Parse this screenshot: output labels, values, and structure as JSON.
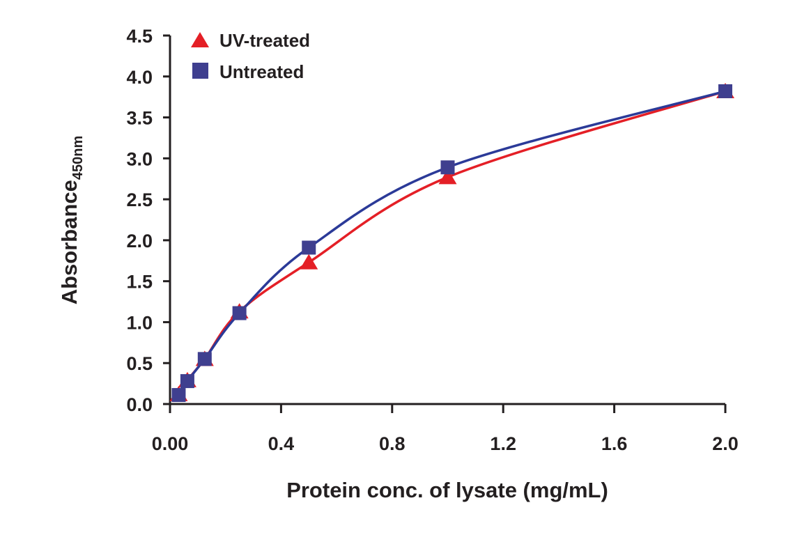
{
  "chart_data": {
    "type": "line",
    "title": "",
    "xlabel": "Protein conc. of lysate (mg/mL)",
    "ylabel": "Absorbance",
    "ylabel_subscript": "450nm",
    "xlim": [
      0,
      2.0
    ],
    "ylim": [
      0,
      4.5
    ],
    "xticks": [
      "0.00",
      "0.4",
      "0.8",
      "1.2",
      "1.6",
      "2.0"
    ],
    "xtick_values": [
      0,
      0.4,
      0.8,
      1.2,
      1.6,
      2.0
    ],
    "yticks": [
      "0.0",
      "0.5",
      "1.0",
      "1.5",
      "2.0",
      "2.5",
      "3.0",
      "3.5",
      "4.0",
      "4.5"
    ],
    "ytick_values": [
      0,
      0.5,
      1.0,
      1.5,
      2.0,
      2.5,
      3.0,
      3.5,
      4.0,
      4.5
    ],
    "grid": false,
    "legend": "top-left",
    "series": [
      {
        "name": "UV-treated",
        "marker": "triangle",
        "color": "#e41f26",
        "x": [
          0.03125,
          0.0625,
          0.125,
          0.25,
          0.5,
          1.0,
          2.0
        ],
        "y": [
          0.12,
          0.29,
          0.55,
          1.13,
          1.73,
          2.77,
          3.82
        ]
      },
      {
        "name": "Untreated",
        "marker": "square",
        "color": "#3f3f8f",
        "x": [
          0.03125,
          0.0625,
          0.125,
          0.25,
          0.5,
          1.0,
          2.0
        ],
        "y": [
          0.11,
          0.28,
          0.55,
          1.11,
          1.91,
          2.89,
          3.82
        ]
      }
    ],
    "line_colors": {
      "UV-treated": "#e41f26",
      "Untreated": "#2b3a98"
    }
  }
}
